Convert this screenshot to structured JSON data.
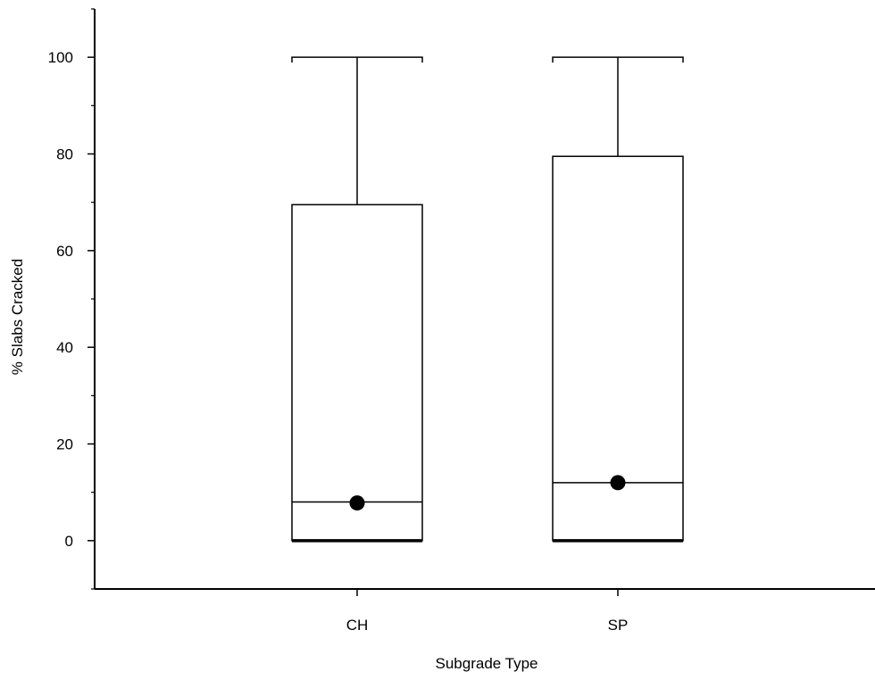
{
  "chart_data": {
    "type": "box",
    "title": "",
    "xlabel": "Subgrade Type",
    "ylabel": "% Slabs Cracked",
    "ylim": [
      -10,
      110
    ],
    "yticks": [
      0,
      20,
      40,
      60,
      80,
      100
    ],
    "categories": [
      "CH",
      "SP"
    ],
    "boxes": [
      {
        "category": "CH",
        "min": 0,
        "q1": 0,
        "median": 8,
        "q3": 69.5,
        "max": 100,
        "mean": 7.8
      },
      {
        "category": "SP",
        "min": 0,
        "q1": 0,
        "median": 12,
        "q3": 79.5,
        "max": 100,
        "mean": 12
      }
    ],
    "grid": false,
    "legend": "none",
    "colors": {
      "box_stroke": "#000000",
      "mean_marker": "#000000",
      "background": "#ffffff"
    }
  }
}
